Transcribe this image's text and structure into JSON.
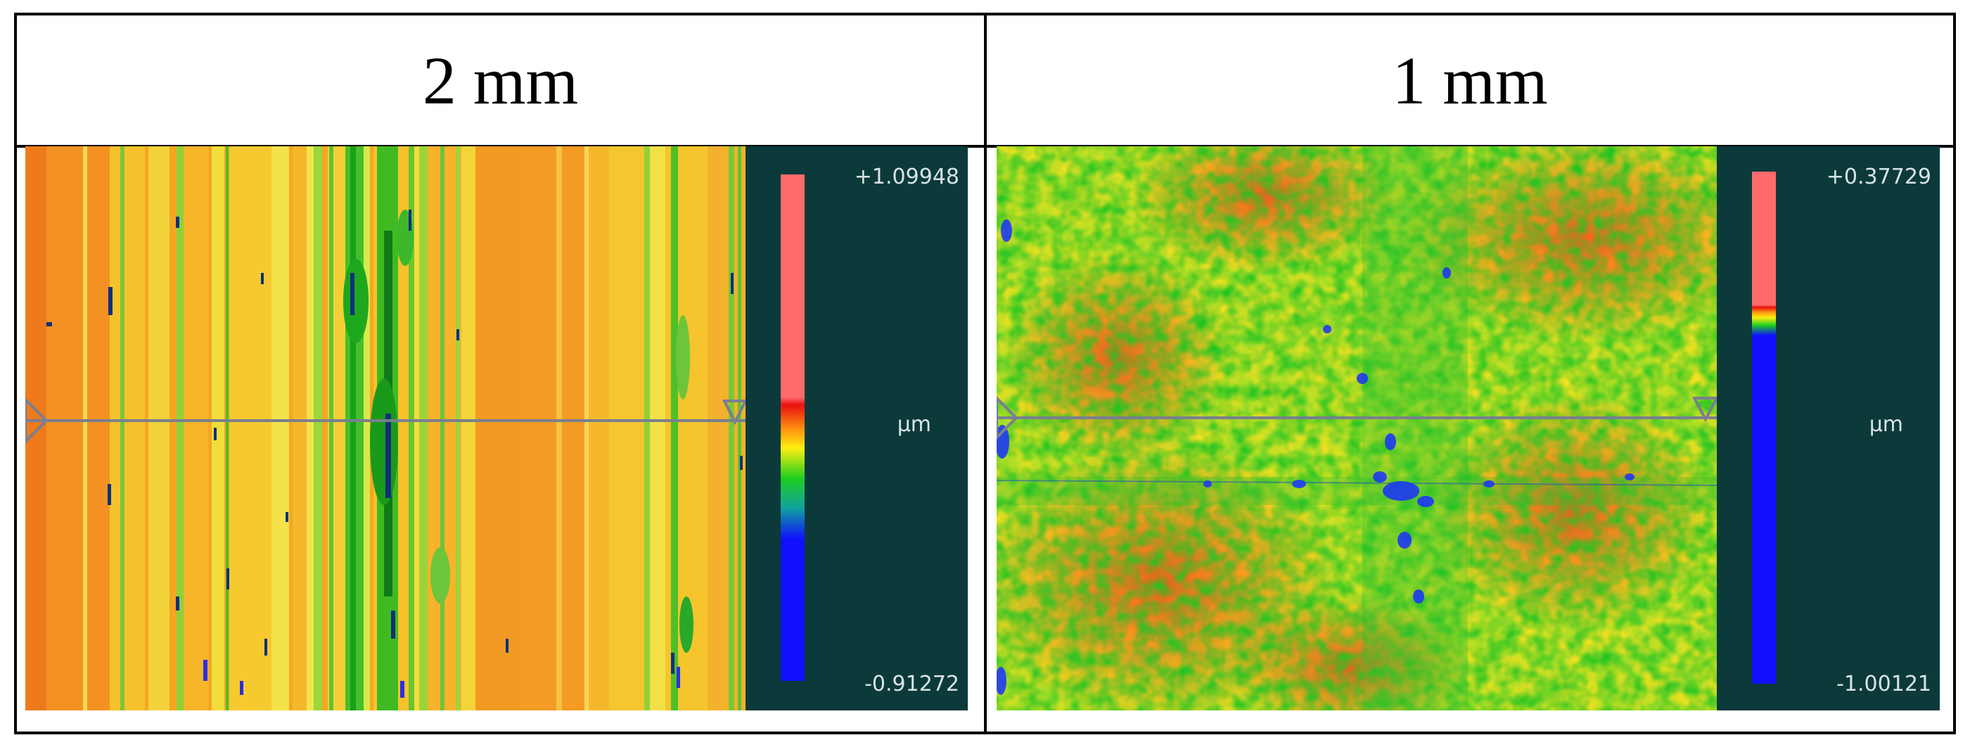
{
  "panels": [
    {
      "title": "2 mm",
      "legend": {
        "max": "+1.09948",
        "unit": "µm",
        "min": "-0.91272"
      }
    },
    {
      "title": "1 mm",
      "legend": {
        "max": "+0.37729",
        "unit": "µm",
        "min": "-1.00121"
      }
    }
  ],
  "colors": {
    "panel_background": "#0c3a3a",
    "scale_red": "#ff6b6b",
    "scale_green": "#1fce1f",
    "scale_blue": "#1010ff"
  }
}
